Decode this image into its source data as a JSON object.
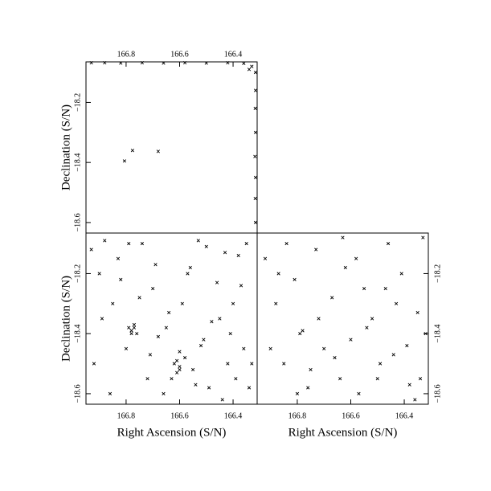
{
  "chart_data": [
    {
      "type": "scatter",
      "ylabel": "Declination (S/N)",
      "x": [
        166.806,
        166.776,
        166.68,
        166.316,
        166.316,
        166.317,
        166.316,
        166.318,
        166.316,
        166.317,
        166.316,
        166.93,
        166.88,
        166.82,
        166.74,
        166.66,
        166.58,
        166.5,
        166.42,
        166.36,
        166.33,
        166.34
      ],
      "y": [
        -18.395,
        -18.36,
        -18.363,
        -18.1,
        -18.16,
        -18.22,
        -18.3,
        -18.38,
        -18.45,
        -18.52,
        -18.6,
        -18.068,
        -18.068,
        -18.069,
        -18.068,
        -18.069,
        -18.068,
        -18.069,
        -18.068,
        -18.07,
        -18.08,
        -18.09
      ],
      "marker_color": "#000000",
      "xlim": [
        166.95,
        166.31
      ],
      "ylim": [
        -18.635,
        -18.065
      ],
      "xticks": [
        166.8,
        166.6,
        166.4
      ],
      "yticks": [
        {
          "value": -18.2,
          "label": "−18.2"
        },
        {
          "value": -18.4,
          "label": "−18.4"
        },
        {
          "value": -18.6,
          "label": "−18.6"
        }
      ]
    },
    {
      "type": "scatter",
      "xlabel": "Right Ascension (S/N)",
      "ylabel": "Declination (S/N)",
      "x": [
        166.93,
        166.9,
        166.88,
        166.85,
        166.83,
        166.8,
        166.78,
        166.77,
        166.76,
        166.74,
        166.72,
        166.7,
        166.68,
        166.66,
        166.64,
        166.62,
        166.6,
        166.58,
        166.56,
        166.54,
        166.52,
        166.5,
        166.48,
        166.46,
        166.44,
        166.42,
        166.4,
        166.38,
        166.36,
        166.34,
        166.92,
        166.89,
        166.86,
        166.82,
        166.79,
        166.78,
        166.75,
        166.71,
        166.69,
        166.65,
        166.63,
        166.61,
        166.6,
        166.59,
        166.57,
        166.55,
        166.53,
        166.51,
        166.49,
        166.45,
        166.43,
        166.41,
        166.39,
        166.37,
        166.35,
        166.33,
        166.79,
        166.77,
        166.61,
        166.6
      ],
      "y": [
        -18.12,
        -18.2,
        -18.09,
        -18.3,
        -18.15,
        -18.45,
        -18.39,
        -18.38,
        -18.4,
        -18.1,
        -18.55,
        -18.25,
        -18.41,
        -18.6,
        -18.33,
        -18.5,
        -18.52,
        -18.48,
        -18.18,
        -18.57,
        -18.44,
        -18.11,
        -18.36,
        -18.23,
        -18.62,
        -18.5,
        -18.3,
        -18.14,
        -18.45,
        -18.58,
        -18.5,
        -18.35,
        -18.6,
        -18.22,
        -18.1,
        -18.4,
        -18.28,
        -18.47,
        -18.17,
        -18.38,
        -18.55,
        -18.49,
        -18.46,
        -18.3,
        -18.2,
        -18.52,
        -18.09,
        -18.42,
        -18.58,
        -18.35,
        -18.13,
        -18.4,
        -18.55,
        -18.24,
        -18.1,
        -18.5,
        -18.38,
        -18.37,
        -18.53,
        -18.51
      ],
      "marker_color": "#000000",
      "xlim": [
        166.95,
        166.31
      ],
      "ylim": [
        -18.635,
        -18.065
      ],
      "xticks": [
        166.8,
        166.6,
        166.4
      ],
      "yticks": [
        {
          "value": -18.2,
          "label": "−18.2"
        },
        {
          "value": -18.4,
          "label": "−18.4"
        },
        {
          "value": -18.6,
          "label": "−18.6"
        }
      ]
    },
    {
      "type": "scatter",
      "xlabel": "Right Ascension (S/N)",
      "x": [
        166.92,
        166.88,
        166.85,
        166.81,
        166.79,
        166.78,
        166.76,
        166.73,
        166.7,
        166.67,
        166.64,
        166.62,
        166.6,
        166.57,
        166.55,
        166.52,
        166.49,
        166.46,
        166.44,
        166.41,
        166.38,
        166.35,
        166.33,
        166.9,
        166.84,
        166.8,
        166.72,
        166.66,
        166.58,
        166.5,
        166.43,
        166.36,
        166.32,
        166.87,
        166.75,
        166.63,
        166.54,
        166.47,
        166.39,
        166.34
      ],
      "y": [
        -18.15,
        -18.3,
        -18.5,
        -18.22,
        -18.4,
        -18.39,
        -18.58,
        -18.12,
        -18.45,
        -18.28,
        -18.55,
        -18.18,
        -18.42,
        -18.6,
        -18.25,
        -18.35,
        -18.5,
        -18.1,
        -18.47,
        -18.2,
        -18.57,
        -18.33,
        -18.08,
        -18.45,
        -18.1,
        -18.6,
        -18.35,
        -18.48,
        -18.15,
        -18.55,
        -18.3,
        -18.62,
        -18.4,
        -18.2,
        -18.52,
        -18.08,
        -18.38,
        -18.25,
        -18.44,
        -18.55
      ],
      "marker_color": "#000000",
      "xlim": [
        166.95,
        166.31
      ],
      "ylim": [
        -18.635,
        -18.065
      ],
      "xticks": [
        166.8,
        166.6,
        166.4
      ],
      "yticks": [
        {
          "value": -18.2,
          "label": "−18.2"
        },
        {
          "value": -18.4,
          "label": "−18.4"
        },
        {
          "value": -18.6,
          "label": "−18.6"
        }
      ]
    }
  ]
}
